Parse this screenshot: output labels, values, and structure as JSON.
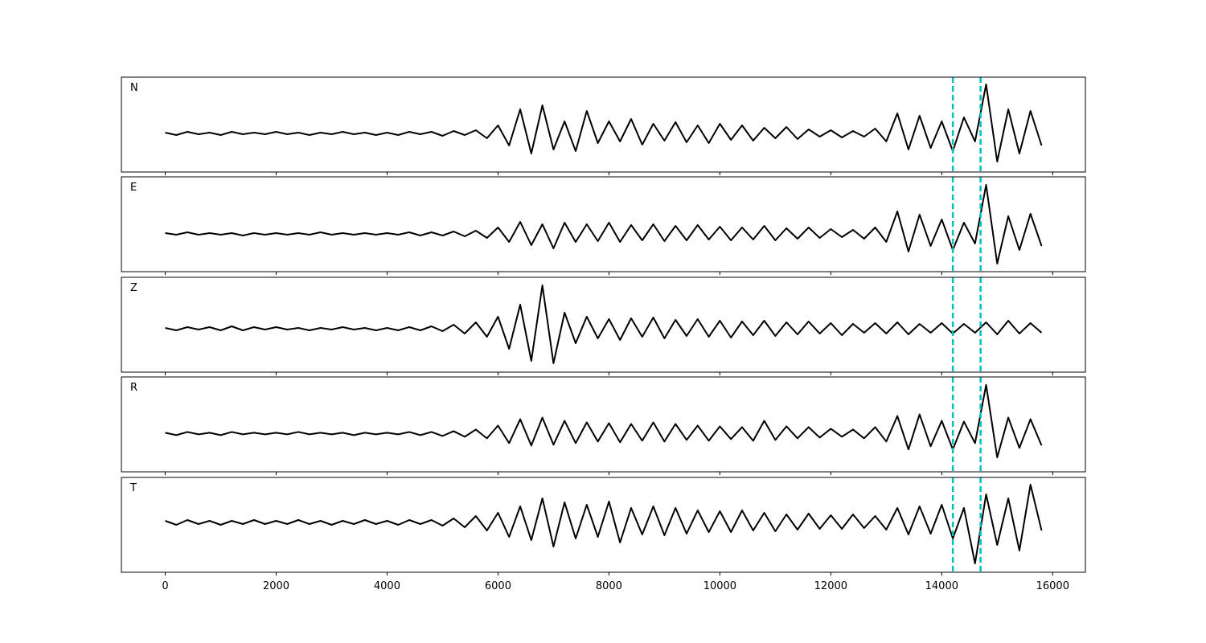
{
  "chart_data": {
    "type": "line",
    "x": [
      0,
      200,
      400,
      600,
      800,
      1000,
      1200,
      1400,
      1600,
      1800,
      2000,
      2200,
      2400,
      2600,
      2800,
      3000,
      3200,
      3400,
      3600,
      3800,
      4000,
      4200,
      4400,
      4600,
      4800,
      5000,
      5200,
      5400,
      5600,
      5800,
      6000,
      6200,
      6400,
      6600,
      6800,
      7000,
      7200,
      7400,
      7600,
      7800,
      8000,
      8200,
      8400,
      8600,
      8800,
      9000,
      9200,
      9400,
      9600,
      9800,
      10000,
      10200,
      10400,
      10600,
      10800,
      11000,
      11200,
      11400,
      11600,
      11800,
      12000,
      12200,
      12400,
      12600,
      12800,
      13000,
      13200,
      13400,
      13600,
      13800,
      14000,
      14200,
      14400,
      14600,
      14800,
      15000,
      15200,
      15400,
      15600,
      15800
    ],
    "xlim": [
      -790,
      16590
    ],
    "xticks": [
      0,
      2000,
      4000,
      6000,
      8000,
      10000,
      12000,
      14000,
      16000
    ],
    "vlines": [
      14200,
      14700
    ],
    "vline_color": "#00bfbf",
    "series": [
      {
        "name": "N",
        "color": "#000000",
        "ylim": [
          -48,
          70
        ],
        "values": [
          1,
          -2,
          2,
          -1,
          1,
          -2,
          2,
          -1,
          1,
          -1,
          2,
          -1,
          1,
          -2,
          1,
          -1,
          2,
          -1,
          1,
          -2,
          1,
          -2,
          2,
          -1,
          2,
          -3,
          3,
          -2,
          4,
          -6,
          10,
          -15,
          30,
          -25,
          35,
          -20,
          15,
          -22,
          28,
          -12,
          15,
          -10,
          18,
          -14,
          12,
          -9,
          14,
          -11,
          10,
          -12,
          12,
          -8,
          10,
          -9,
          7,
          -6,
          8,
          -7,
          5,
          -4,
          4,
          -5,
          3,
          -4,
          6,
          -10,
          25,
          -20,
          22,
          -18,
          15,
          -22,
          20,
          -10,
          61,
          -35,
          30,
          -25,
          28,
          -15
        ]
      },
      {
        "name": "E",
        "color": "#000000",
        "ylim": [
          -47,
          71
        ],
        "values": [
          1,
          -1,
          2,
          -1,
          1,
          -1,
          1,
          -2,
          1,
          -1,
          1,
          -1,
          1,
          -1,
          2,
          -1,
          1,
          -1,
          1,
          -1,
          1,
          -1,
          2,
          -2,
          2,
          -2,
          3,
          -3,
          4,
          -5,
          8,
          -10,
          15,
          -14,
          12,
          -18,
          14,
          -10,
          12,
          -9,
          14,
          -10,
          11,
          -8,
          12,
          -9,
          10,
          -8,
          11,
          -7,
          9,
          -8,
          8,
          -7,
          10,
          -8,
          7,
          -6,
          8,
          -5,
          6,
          -4,
          5,
          -6,
          8,
          -10,
          28,
          -22,
          24,
          -15,
          18,
          -20,
          14,
          -12,
          61,
          -37,
          22,
          -20,
          25,
          -15
        ]
      },
      {
        "name": "Z",
        "color": "#000000",
        "ylim": [
          -54,
          64
        ],
        "values": [
          1,
          -2,
          2,
          -1,
          2,
          -2,
          3,
          -2,
          2,
          -1,
          2,
          -1,
          1,
          -2,
          1,
          -1,
          2,
          -1,
          1,
          -2,
          1,
          -2,
          2,
          -2,
          3,
          -3,
          5,
          -6,
          8,
          -10,
          15,
          -25,
          30,
          -40,
          54,
          -43,
          20,
          -18,
          15,
          -12,
          12,
          -14,
          13,
          -10,
          14,
          -12,
          11,
          -9,
          12,
          -10,
          10,
          -11,
          9,
          -8,
          10,
          -9,
          8,
          -7,
          9,
          -6,
          7,
          -8,
          6,
          -5,
          7,
          -6,
          8,
          -7,
          6,
          -5,
          7,
          -6,
          6,
          -5,
          8,
          -7,
          10,
          -6,
          7,
          -5
        ]
      },
      {
        "name": "R",
        "color": "#000000",
        "ylim": [
          -48,
          71
        ],
        "values": [
          1,
          -2,
          2,
          -1,
          1,
          -2,
          2,
          -1,
          1,
          -1,
          1,
          -1,
          2,
          -1,
          1,
          -1,
          1,
          -2,
          1,
          -1,
          1,
          -1,
          2,
          -2,
          2,
          -3,
          3,
          -4,
          5,
          -6,
          10,
          -12,
          18,
          -15,
          20,
          -14,
          16,
          -12,
          14,
          -10,
          13,
          -11,
          12,
          -9,
          14,
          -10,
          12,
          -8,
          10,
          -9,
          9,
          -7,
          8,
          -9,
          16,
          -8,
          9,
          -6,
          8,
          -5,
          6,
          -4,
          5,
          -6,
          8,
          -10,
          22,
          -20,
          24,
          -16,
          16,
          -20,
          15,
          -12,
          61,
          -30,
          20,
          -18,
          18,
          -15
        ]
      },
      {
        "name": "T",
        "color": "#000000",
        "ylim": [
          -62,
          56
        ],
        "values": [
          2,
          -3,
          3,
          -2,
          2,
          -3,
          2,
          -2,
          3,
          -2,
          2,
          -2,
          3,
          -2,
          2,
          -3,
          2,
          -2,
          3,
          -2,
          2,
          -3,
          3,
          -2,
          3,
          -4,
          5,
          -6,
          8,
          -10,
          12,
          -18,
          20,
          -22,
          30,
          -30,
          25,
          -20,
          22,
          -18,
          26,
          -25,
          18,
          -15,
          20,
          -16,
          18,
          -14,
          15,
          -12,
          14,
          -12,
          15,
          -10,
          12,
          -11,
          10,
          -9,
          11,
          -8,
          9,
          -8,
          10,
          -7,
          8,
          -9,
          18,
          -15,
          20,
          -14,
          22,
          -20,
          18,
          -51,
          35,
          -28,
          30,
          -35,
          47,
          -10
        ]
      }
    ]
  }
}
